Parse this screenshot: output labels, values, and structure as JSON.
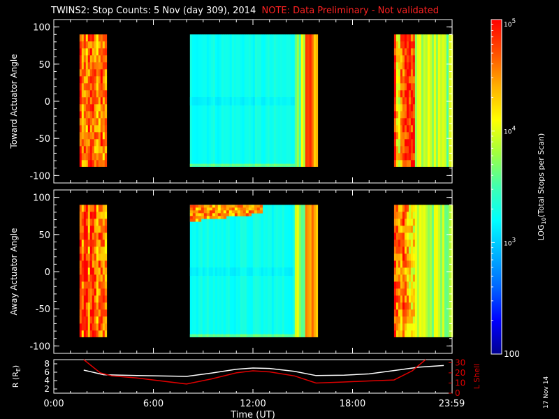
{
  "title": {
    "main": "TWINS2: Stop Counts:  5 Nov (day 309), 2014",
    "note": "NOTE: Data Preliminary - Not validated",
    "note_color": "#ff2222"
  },
  "date_stamp": "17 Nov 14",
  "chart_data": [
    {
      "type": "heatmap",
      "panel": "toward",
      "ylabel": "Toward Actuator Angle",
      "ylim": [
        -110,
        110
      ],
      "yticks": [
        -100,
        -50,
        0,
        50,
        100
      ],
      "xlim": [
        0,
        24
      ],
      "data_y_range": [
        -88,
        90
      ],
      "segments": [
        {
          "start_hr": 1.55,
          "end_hr": 3.1,
          "level": "high"
        },
        {
          "start_hr": 8.2,
          "end_hr": 15.9,
          "level": "low"
        },
        {
          "start_hr": 20.5,
          "end_hr": 24.0,
          "level": "mixed"
        }
      ]
    },
    {
      "type": "heatmap",
      "panel": "away",
      "ylabel": "Away Actuator Angle",
      "ylim": [
        -110,
        110
      ],
      "yticks": [
        -100,
        -50,
        0,
        50,
        100
      ],
      "xlim": [
        0,
        24
      ],
      "data_y_range": [
        -88,
        90
      ],
      "segments": [
        {
          "start_hr": 1.55,
          "end_hr": 3.1,
          "level": "high"
        },
        {
          "start_hr": 8.2,
          "end_hr": 15.9,
          "level": "low",
          "hot_band_y": [
            70,
            90
          ]
        },
        {
          "start_hr": 20.5,
          "end_hr": 24.0,
          "level": "mixed"
        }
      ]
    },
    {
      "type": "line",
      "panel": "orbit",
      "xlabel": "Time (UT)",
      "xticks": [
        "0:00",
        "6:00",
        "12:00",
        "18:00",
        "23:59"
      ],
      "xtick_hours": [
        0,
        6,
        12,
        18,
        23.98
      ],
      "ylabel_left": "R (R",
      "ylabel_left_sub": "E",
      "ylabel_left_end": ")",
      "ylim_left": [
        1,
        9
      ],
      "yticks_left": [
        "2",
        "4",
        "6",
        "8"
      ],
      "ylabel_right": "L Shell",
      "ylim_right": [
        0,
        33
      ],
      "yticks_right": [
        "0",
        "10",
        "20",
        "30"
      ],
      "series": [
        {
          "axis": "left",
          "color": "#ffffff",
          "x": [
            1.8,
            3.0,
            5.0,
            8.0,
            9.5,
            11.0,
            12.0,
            13.0,
            14.5,
            15.8,
            17.5,
            19.0,
            20.5,
            22.0,
            23.5
          ],
          "y": [
            6.5,
            5.4,
            5.2,
            5.0,
            5.8,
            6.7,
            7.0,
            6.9,
            6.2,
            5.2,
            5.3,
            5.6,
            6.4,
            7.2,
            7.6
          ]
        },
        {
          "axis": "right",
          "color": "#e00000",
          "x": [
            1.8,
            2.8,
            3.5,
            5.0,
            8.0,
            9.5,
            11.0,
            12.0,
            13.0,
            14.5,
            15.8,
            17.5,
            19.0,
            20.5,
            21.6,
            22.4
          ],
          "y": [
            33,
            20,
            17,
            15,
            9,
            14,
            20,
            22,
            21,
            17,
            10,
            11,
            12,
            13,
            22,
            33
          ]
        }
      ]
    }
  ],
  "colorbar": {
    "label": "LOG",
    "label_sub": "10",
    "label_rest": "(Total Stops per Scan)",
    "ticks": [
      {
        "base": "10",
        "exp": "5",
        "log": 5
      },
      {
        "base": "10",
        "exp": "4",
        "log": 4
      },
      {
        "base": "10",
        "exp": "3",
        "log": 3
      },
      {
        "base": "100",
        "exp": "",
        "log": 2
      }
    ],
    "range_log": [
      2,
      5
    ],
    "colors": [
      "#00008f",
      "#0000ff",
      "#0066ff",
      "#00b4ff",
      "#00ffff",
      "#40ffb0",
      "#a0ff40",
      "#ffff00",
      "#ffb000",
      "#ff5000",
      "#ff0000"
    ]
  }
}
